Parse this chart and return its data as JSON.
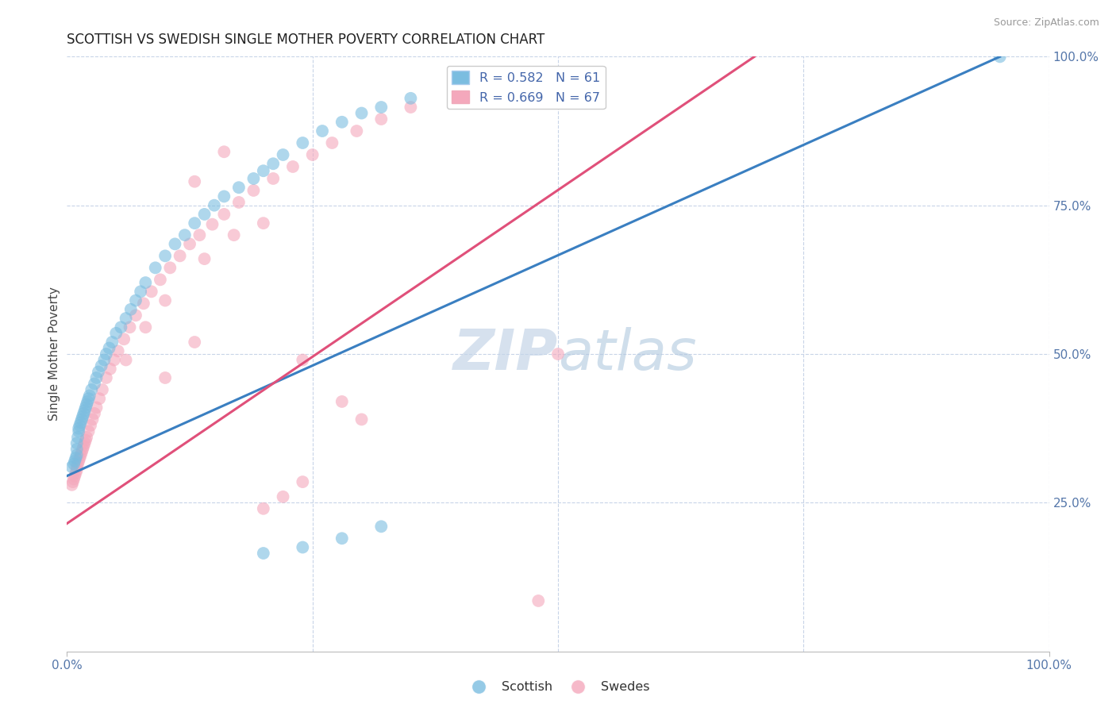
{
  "title": "SCOTTISH VS SWEDISH SINGLE MOTHER POVERTY CORRELATION CHART",
  "source": "Source: ZipAtlas.com",
  "ylabel": "Single Mother Poverty",
  "legend_R_blue": "R = 0.582",
  "legend_N_blue": "N = 61",
  "legend_R_pink": "R = 0.669",
  "legend_N_pink": "N = 67",
  "blue_color": "#7bbde0",
  "pink_color": "#f4a8bc",
  "blue_line_color": "#3a7fc1",
  "pink_line_color": "#e0507a",
  "bg_color": "#ffffff",
  "grid_color": "#c8d4e8",
  "axis_color": "#5577aa",
  "title_color": "#222222",
  "source_color": "#999999",
  "legend_text_color": "#4466aa",
  "blue_scatter_x": [
    0.005,
    0.007,
    0.008,
    0.009,
    0.01,
    0.01,
    0.01,
    0.011,
    0.012,
    0.012,
    0.013,
    0.014,
    0.015,
    0.016,
    0.017,
    0.018,
    0.019,
    0.02,
    0.021,
    0.022,
    0.023,
    0.025,
    0.028,
    0.03,
    0.032,
    0.035,
    0.038,
    0.04,
    0.043,
    0.046,
    0.05,
    0.055,
    0.06,
    0.065,
    0.07,
    0.075,
    0.08,
    0.09,
    0.1,
    0.11,
    0.12,
    0.13,
    0.14,
    0.15,
    0.16,
    0.175,
    0.19,
    0.2,
    0.21,
    0.22,
    0.24,
    0.26,
    0.28,
    0.3,
    0.32,
    0.35,
    0.2,
    0.24,
    0.28,
    0.32,
    0.95
  ],
  "blue_scatter_y": [
    0.31,
    0.315,
    0.32,
    0.325,
    0.33,
    0.34,
    0.35,
    0.36,
    0.37,
    0.375,
    0.38,
    0.385,
    0.39,
    0.395,
    0.4,
    0.405,
    0.41,
    0.415,
    0.42,
    0.425,
    0.43,
    0.44,
    0.45,
    0.46,
    0.47,
    0.48,
    0.49,
    0.5,
    0.51,
    0.52,
    0.535,
    0.545,
    0.56,
    0.575,
    0.59,
    0.605,
    0.62,
    0.645,
    0.665,
    0.685,
    0.7,
    0.72,
    0.735,
    0.75,
    0.765,
    0.78,
    0.795,
    0.808,
    0.82,
    0.835,
    0.855,
    0.875,
    0.89,
    0.905,
    0.915,
    0.93,
    0.165,
    0.175,
    0.19,
    0.21,
    1.0
  ],
  "pink_scatter_x": [
    0.005,
    0.006,
    0.007,
    0.008,
    0.009,
    0.01,
    0.01,
    0.011,
    0.012,
    0.013,
    0.014,
    0.015,
    0.016,
    0.017,
    0.018,
    0.019,
    0.02,
    0.022,
    0.024,
    0.026,
    0.028,
    0.03,
    0.033,
    0.036,
    0.04,
    0.044,
    0.048,
    0.052,
    0.058,
    0.064,
    0.07,
    0.078,
    0.086,
    0.095,
    0.105,
    0.115,
    0.125,
    0.135,
    0.148,
    0.16,
    0.175,
    0.19,
    0.21,
    0.23,
    0.25,
    0.27,
    0.295,
    0.32,
    0.35,
    0.06,
    0.08,
    0.1,
    0.14,
    0.17,
    0.1,
    0.13,
    0.2,
    0.22,
    0.24,
    0.48,
    0.13,
    0.16,
    0.2,
    0.24,
    0.28,
    0.3,
    0.5
  ],
  "pink_scatter_y": [
    0.28,
    0.285,
    0.29,
    0.295,
    0.3,
    0.305,
    0.31,
    0.315,
    0.32,
    0.325,
    0.33,
    0.335,
    0.34,
    0.345,
    0.35,
    0.355,
    0.36,
    0.37,
    0.38,
    0.39,
    0.4,
    0.41,
    0.425,
    0.44,
    0.46,
    0.475,
    0.49,
    0.505,
    0.525,
    0.545,
    0.565,
    0.585,
    0.605,
    0.625,
    0.645,
    0.665,
    0.685,
    0.7,
    0.718,
    0.735,
    0.755,
    0.775,
    0.795,
    0.815,
    0.835,
    0.855,
    0.875,
    0.895,
    0.915,
    0.49,
    0.545,
    0.59,
    0.66,
    0.7,
    0.46,
    0.52,
    0.24,
    0.26,
    0.285,
    0.085,
    0.79,
    0.84,
    0.72,
    0.49,
    0.42,
    0.39,
    0.5
  ],
  "blue_line_x": [
    0.0,
    0.95
  ],
  "blue_line_y": [
    0.295,
    1.0
  ],
  "pink_line_x": [
    0.0,
    0.7
  ],
  "pink_line_y": [
    0.215,
    1.0
  ],
  "watermark_zip_color": "#c5d5e8",
  "watermark_atlas_color": "#b0c8de",
  "xlim": [
    0,
    1
  ],
  "ylim": [
    0,
    1
  ],
  "xticks": [
    0,
    1
  ],
  "xtick_labels": [
    "0.0%",
    "100.0%"
  ],
  "yticks_right": [
    0.25,
    0.5,
    0.75,
    1.0
  ],
  "ytick_labels_right": [
    "25.0%",
    "50.0%",
    "75.0%",
    "100.0%"
  ],
  "legend_bottom": [
    "Scottish",
    "Swedes"
  ]
}
